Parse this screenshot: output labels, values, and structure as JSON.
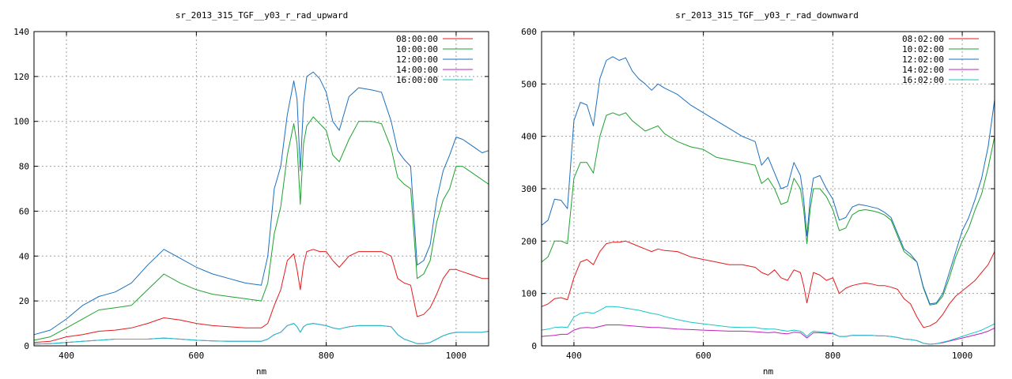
{
  "chart_data": [
    {
      "type": "line",
      "title": "sr_2013_315_TGF__y03_r_rad_upward",
      "xlabel": "nm",
      "ylabel": "",
      "xlim": [
        350,
        1050
      ],
      "ylim": [
        0,
        140
      ],
      "xticks": [
        400,
        600,
        800,
        1000
      ],
      "yticks": [
        0,
        20,
        40,
        60,
        80,
        100,
        120,
        140
      ],
      "grid": true,
      "legend_position": "top-right",
      "x": [
        350,
        375,
        400,
        425,
        450,
        475,
        500,
        525,
        550,
        575,
        600,
        625,
        650,
        675,
        700,
        710,
        720,
        730,
        740,
        750,
        755,
        760,
        765,
        770,
        780,
        790,
        800,
        810,
        820,
        835,
        850,
        870,
        885,
        900,
        910,
        920,
        930,
        940,
        950,
        960,
        970,
        980,
        990,
        1000,
        1010,
        1020,
        1030,
        1040,
        1050
      ],
      "series": [
        {
          "name": "08:00:00",
          "color": "#e41a1c",
          "values": [
            1.5,
            2,
            4,
            5,
            6.5,
            7,
            8,
            10,
            12.5,
            11.5,
            10,
            9,
            8.5,
            8,
            8,
            10,
            18,
            25,
            38,
            41,
            34,
            25,
            36,
            42,
            43,
            42,
            42,
            38,
            35,
            40,
            42,
            42,
            42,
            40,
            30,
            28,
            27,
            13,
            14,
            17,
            23,
            30,
            34,
            34,
            33,
            32,
            31,
            30,
            30
          ]
        },
        {
          "name": "10:00:00",
          "color": "#1fa22e",
          "values": [
            2.5,
            4,
            8,
            12,
            16,
            17,
            18,
            25,
            32,
            28,
            25,
            23,
            22,
            21,
            20,
            28,
            50,
            62,
            85,
            99,
            90,
            63,
            90,
            98,
            102,
            99,
            96,
            85,
            82,
            92,
            100,
            100,
            99,
            88,
            75,
            72,
            70,
            30,
            32,
            38,
            55,
            65,
            70,
            80,
            80,
            78,
            76,
            74,
            72
          ]
        },
        {
          "name": "12:00:00",
          "color": "#1c6fbf",
          "values": [
            5,
            7,
            12,
            18,
            22,
            24,
            28,
            36,
            43,
            39,
            35,
            32,
            30,
            28,
            27,
            40,
            70,
            80,
            103,
            118,
            110,
            78,
            108,
            120,
            122,
            119,
            113,
            100,
            96,
            111,
            115,
            114,
            113,
            100,
            87,
            83,
            80,
            36,
            38,
            45,
            65,
            78,
            85,
            93,
            92,
            90,
            88,
            86,
            87
          ]
        },
        {
          "name": "14:00:00",
          "color": "#bf1fbf",
          "values": [
            0.8,
            1,
            1.5,
            2,
            2.5,
            3,
            3,
            3,
            3.5,
            3,
            2.5,
            2.2,
            2,
            2,
            2,
            3,
            5,
            6,
            9,
            10,
            8.5,
            6,
            8.5,
            9.5,
            10,
            9.5,
            9,
            8,
            7.5,
            8.5,
            9,
            9,
            9,
            8.5,
            5,
            3,
            2,
            1,
            1,
            1.5,
            3,
            4.5,
            5.5,
            6,
            6,
            6,
            6,
            6,
            6.5
          ]
        },
        {
          "name": "16:00:00",
          "color": "#18c6c6",
          "values": [
            0.8,
            1,
            1.5,
            2,
            2.5,
            3,
            3,
            3,
            3.5,
            3,
            2.5,
            2.2,
            2,
            2,
            2,
            3,
            5,
            6,
            9,
            10,
            8.5,
            6,
            8.5,
            9.5,
            10,
            9.5,
            9,
            8,
            7.5,
            8.5,
            9,
            9,
            9,
            8.5,
            5,
            3,
            2,
            1,
            1,
            1.5,
            3,
            4.5,
            5.5,
            6,
            6,
            6,
            6,
            6,
            6.5
          ]
        }
      ]
    },
    {
      "type": "line",
      "title": "sr_2013_315_TGF__y03_r_rad_downward",
      "xlabel": "nm",
      "ylabel": "",
      "xlim": [
        350,
        1050
      ],
      "ylim": [
        0,
        600
      ],
      "xticks": [
        400,
        600,
        800,
        1000
      ],
      "yticks": [
        0,
        100,
        200,
        300,
        400,
        500,
        600
      ],
      "grid": true,
      "legend_position": "top-right",
      "x": [
        350,
        360,
        370,
        380,
        390,
        400,
        410,
        420,
        430,
        440,
        450,
        460,
        470,
        480,
        490,
        500,
        510,
        520,
        530,
        540,
        560,
        580,
        600,
        620,
        640,
        660,
        680,
        690,
        700,
        710,
        720,
        730,
        740,
        750,
        755,
        760,
        765,
        770,
        780,
        790,
        800,
        810,
        820,
        830,
        840,
        850,
        860,
        870,
        880,
        890,
        900,
        910,
        920,
        930,
        940,
        950,
        960,
        970,
        980,
        990,
        1000,
        1010,
        1020,
        1030,
        1040,
        1050
      ],
      "series": [
        {
          "name": "08:02:00",
          "color": "#e41a1c",
          "values": [
            75,
            80,
            90,
            92,
            88,
            130,
            160,
            165,
            155,
            180,
            195,
            198,
            198,
            200,
            195,
            190,
            185,
            180,
            185,
            182,
            180,
            170,
            165,
            160,
            155,
            155,
            150,
            140,
            135,
            145,
            130,
            125,
            145,
            140,
            115,
            82,
            110,
            140,
            135,
            125,
            130,
            100,
            110,
            115,
            118,
            120,
            118,
            115,
            115,
            112,
            108,
            90,
            80,
            55,
            35,
            38,
            45,
            60,
            80,
            95,
            105,
            115,
            125,
            140,
            155,
            180
          ]
        },
        {
          "name": "10:02:00",
          "color": "#1fa22e",
          "values": [
            160,
            170,
            200,
            200,
            195,
            320,
            350,
            350,
            330,
            400,
            440,
            445,
            440,
            445,
            430,
            420,
            410,
            415,
            420,
            405,
            390,
            380,
            375,
            360,
            355,
            350,
            345,
            310,
            320,
            300,
            270,
            275,
            320,
            300,
            260,
            195,
            260,
            300,
            300,
            285,
            260,
            220,
            225,
            250,
            258,
            260,
            258,
            255,
            250,
            240,
            210,
            180,
            170,
            160,
            110,
            78,
            80,
            95,
            130,
            170,
            200,
            225,
            260,
            290,
            340,
            400
          ]
        },
        {
          "name": "12:02:00",
          "color": "#1c6fbf",
          "values": [
            230,
            240,
            280,
            278,
            262,
            430,
            465,
            460,
            420,
            510,
            545,
            552,
            545,
            550,
            525,
            510,
            500,
            488,
            500,
            492,
            480,
            460,
            445,
            430,
            415,
            400,
            390,
            345,
            360,
            330,
            300,
            305,
            350,
            325,
            280,
            210,
            280,
            320,
            325,
            300,
            280,
            240,
            245,
            265,
            270,
            268,
            265,
            262,
            255,
            245,
            215,
            185,
            175,
            160,
            112,
            80,
            82,
            100,
            140,
            180,
            220,
            245,
            280,
            320,
            380,
            470
          ]
        },
        {
          "name": "14:02:00",
          "color": "#bf1fbf",
          "values": [
            18,
            19,
            20,
            22,
            22,
            30,
            34,
            35,
            34,
            37,
            40,
            40,
            40,
            39,
            38,
            37,
            36,
            35,
            35,
            34,
            32,
            31,
            30,
            29,
            28,
            28,
            27,
            26,
            25,
            26,
            24,
            23,
            26,
            25,
            20,
            15,
            20,
            25,
            25,
            24,
            23,
            18,
            18,
            20,
            20,
            20,
            20,
            19,
            19,
            18,
            16,
            13,
            12,
            10,
            5,
            3,
            4,
            6,
            9,
            12,
            15,
            18,
            21,
            24,
            28,
            34
          ]
        },
        {
          "name": "16:02:00",
          "color": "#18c6c6",
          "values": [
            30,
            32,
            35,
            36,
            35,
            55,
            62,
            64,
            62,
            68,
            75,
            75,
            74,
            72,
            70,
            68,
            65,
            62,
            60,
            56,
            50,
            45,
            42,
            39,
            36,
            35,
            35,
            33,
            32,
            32,
            30,
            28,
            30,
            28,
            24,
            18,
            24,
            28,
            27,
            26,
            24,
            18,
            18,
            20,
            20,
            20,
            20,
            19,
            19,
            18,
            16,
            13,
            12,
            10,
            5,
            3,
            4,
            7,
            10,
            14,
            18,
            22,
            26,
            30,
            36,
            42
          ]
        }
      ]
    }
  ]
}
